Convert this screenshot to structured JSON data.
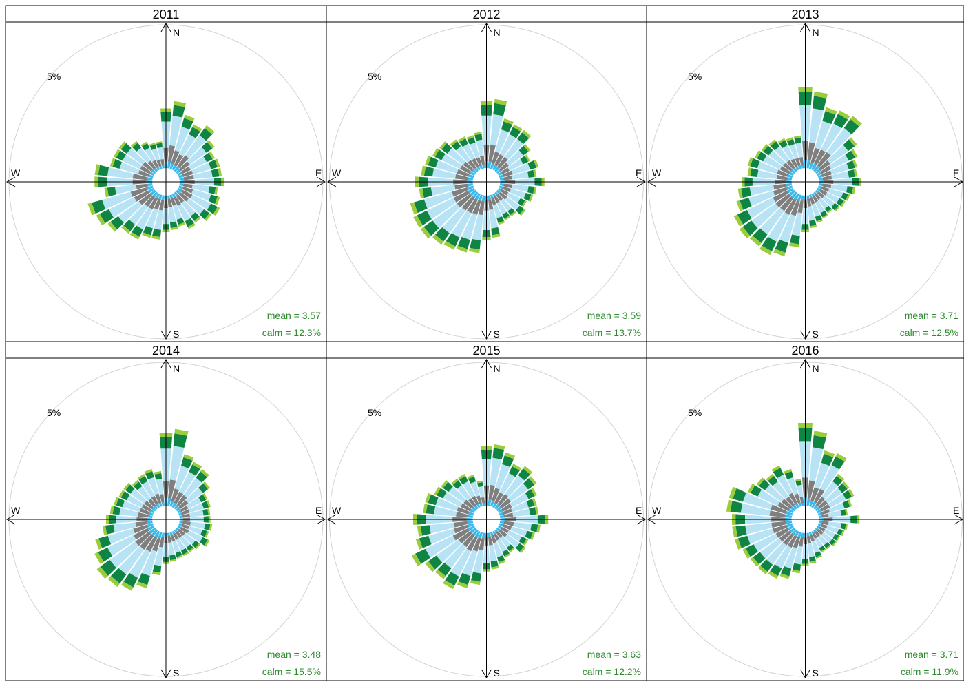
{
  "chart_data": {
    "type": "windrose",
    "panels": [
      {
        "title": "2011",
        "mean": "mean = 3.57",
        "calm": "calm = 12.3%",
        "directions_deg": [
          0,
          10,
          20,
          30,
          40,
          50,
          60,
          70,
          80,
          90,
          100,
          110,
          120,
          130,
          140,
          150,
          160,
          170,
          180,
          190,
          200,
          210,
          220,
          230,
          240,
          250,
          260,
          270,
          280,
          290,
          300,
          310,
          320,
          330,
          340,
          350
        ],
        "totals": [
          3.1,
          3.5,
          2.9,
          2.6,
          2.9,
          2.4,
          2.1,
          2.2,
          2.2,
          2.3,
          2.0,
          2.2,
          2.4,
          2.2,
          1.9,
          2.0,
          1.7,
          1.8,
          1.9,
          2.3,
          2.3,
          2.6,
          2.6,
          3.0,
          3.3,
          3.5,
          2.5,
          3.0,
          3.0,
          2.3,
          2.3,
          2.3,
          1.9,
          1.6,
          1.4,
          1.4
        ]
      },
      {
        "title": "2012",
        "mean": "mean = 3.59",
        "calm": "calm = 13.7%",
        "directions_deg": [
          0,
          10,
          20,
          30,
          40,
          50,
          60,
          70,
          80,
          90,
          100,
          110,
          120,
          130,
          140,
          150,
          160,
          170,
          180,
          190,
          200,
          210,
          220,
          230,
          240,
          250,
          260,
          270,
          280,
          290,
          300,
          310,
          320,
          330,
          340,
          350
        ],
        "totals": [
          3.5,
          3.6,
          2.7,
          2.6,
          2.6,
          2.1,
          1.8,
          2.1,
          1.9,
          2.3,
          1.9,
          1.8,
          1.6,
          1.8,
          1.5,
          1.5,
          1.6,
          2.2,
          2.3,
          3.0,
          3.1,
          3.2,
          3.3,
          3.5,
          3.5,
          3.4,
          2.8,
          3.0,
          2.7,
          2.6,
          2.4,
          2.3,
          2.0,
          1.9,
          1.8,
          1.9
        ]
      },
      {
        "title": "2013",
        "mean": "mean = 3.71",
        "calm": "calm = 12.5%",
        "directions_deg": [
          0,
          10,
          20,
          30,
          40,
          50,
          60,
          70,
          80,
          90,
          100,
          110,
          120,
          130,
          140,
          150,
          160,
          170,
          180,
          190,
          200,
          210,
          220,
          230,
          240,
          250,
          260,
          270,
          280,
          290,
          300,
          310,
          320,
          330,
          340,
          350
        ],
        "totals": [
          4.2,
          4.0,
          3.3,
          3.4,
          3.5,
          2.6,
          2.3,
          2.1,
          2.0,
          2.2,
          1.9,
          1.7,
          1.6,
          1.5,
          1.3,
          1.4,
          1.5,
          1.7,
          1.9,
          2.7,
          3.3,
          3.5,
          3.4,
          3.5,
          3.4,
          3.0,
          2.8,
          2.6,
          2.3,
          2.4,
          2.2,
          2.1,
          2.0,
          1.8,
          1.7,
          1.7
        ]
      },
      {
        "title": "2014",
        "mean": "mean = 3.48",
        "calm": "calm = 15.5%",
        "directions_deg": [
          0,
          10,
          20,
          30,
          40,
          50,
          60,
          70,
          80,
          90,
          100,
          110,
          120,
          130,
          140,
          150,
          160,
          170,
          180,
          190,
          200,
          210,
          220,
          230,
          240,
          250,
          260,
          270,
          280,
          290,
          300,
          310,
          320,
          330,
          340,
          350
        ],
        "totals": [
          3.8,
          4.0,
          2.8,
          2.6,
          2.5,
          2.1,
          1.7,
          1.7,
          1.6,
          1.6,
          1.7,
          1.6,
          1.8,
          1.5,
          1.4,
          1.4,
          1.4,
          1.5,
          1.6,
          2.2,
          3.0,
          3.4,
          3.6,
          3.7,
          3.4,
          3.1,
          2.6,
          2.4,
          2.2,
          2.1,
          2.0,
          2.0,
          1.8,
          1.9,
          2.0,
          1.8
        ]
      },
      {
        "title": "2015",
        "mean": "mean = 3.63",
        "calm": "calm = 12.2%",
        "directions_deg": [
          0,
          10,
          20,
          30,
          40,
          50,
          60,
          70,
          80,
          90,
          100,
          110,
          120,
          130,
          140,
          150,
          160,
          170,
          180,
          190,
          200,
          210,
          220,
          230,
          240,
          250,
          260,
          270,
          280,
          290,
          300,
          310,
          320,
          330,
          340,
          350
        ],
        "totals": [
          3.1,
          3.2,
          2.9,
          2.5,
          2.7,
          2.5,
          2.2,
          2.0,
          2.0,
          2.5,
          2.1,
          1.9,
          1.7,
          1.8,
          1.4,
          1.5,
          1.7,
          1.9,
          2.0,
          2.7,
          3.0,
          3.3,
          3.1,
          3.2,
          3.6,
          3.1,
          2.9,
          3.1,
          2.6,
          2.6,
          2.3,
          2.2,
          1.9,
          1.9,
          1.7,
          1.3
        ]
      },
      {
        "title": "2016",
        "mean": "mean = 3.71",
        "calm": "calm = 11.9%",
        "directions_deg": [
          0,
          10,
          20,
          30,
          40,
          50,
          60,
          70,
          80,
          90,
          100,
          110,
          120,
          130,
          140,
          150,
          160,
          170,
          180,
          190,
          200,
          210,
          220,
          230,
          240,
          250,
          260,
          270,
          280,
          290,
          300,
          310,
          320,
          330,
          340,
          350
        ],
        "totals": [
          4.3,
          3.9,
          3.0,
          3.1,
          2.2,
          2.1,
          2.1,
          1.8,
          1.5,
          2.1,
          1.5,
          1.4,
          1.3,
          1.3,
          1.2,
          1.2,
          1.4,
          1.6,
          1.7,
          2.1,
          2.5,
          2.7,
          2.8,
          2.8,
          2.9,
          3.1,
          3.1,
          3.1,
          3.4,
          3.4,
          2.6,
          2.4,
          2.2,
          2.4,
          2.0,
          1.4
        ]
      }
    ],
    "speed_bins": {
      "fractions": [
        0.1,
        0.24,
        0.44,
        0.16,
        0.06
      ],
      "colors": [
        "#3db9ea",
        "#7f7f7f",
        "#b7e3f5",
        "#0f8544",
        "#9ccb3b"
      ]
    },
    "ring_label": "5%",
    "ring_interval_percent": 5,
    "compass": {
      "n": "N",
      "e": "E",
      "s": "S",
      "w": "W"
    },
    "annotation_color": "#2e8b2e"
  }
}
